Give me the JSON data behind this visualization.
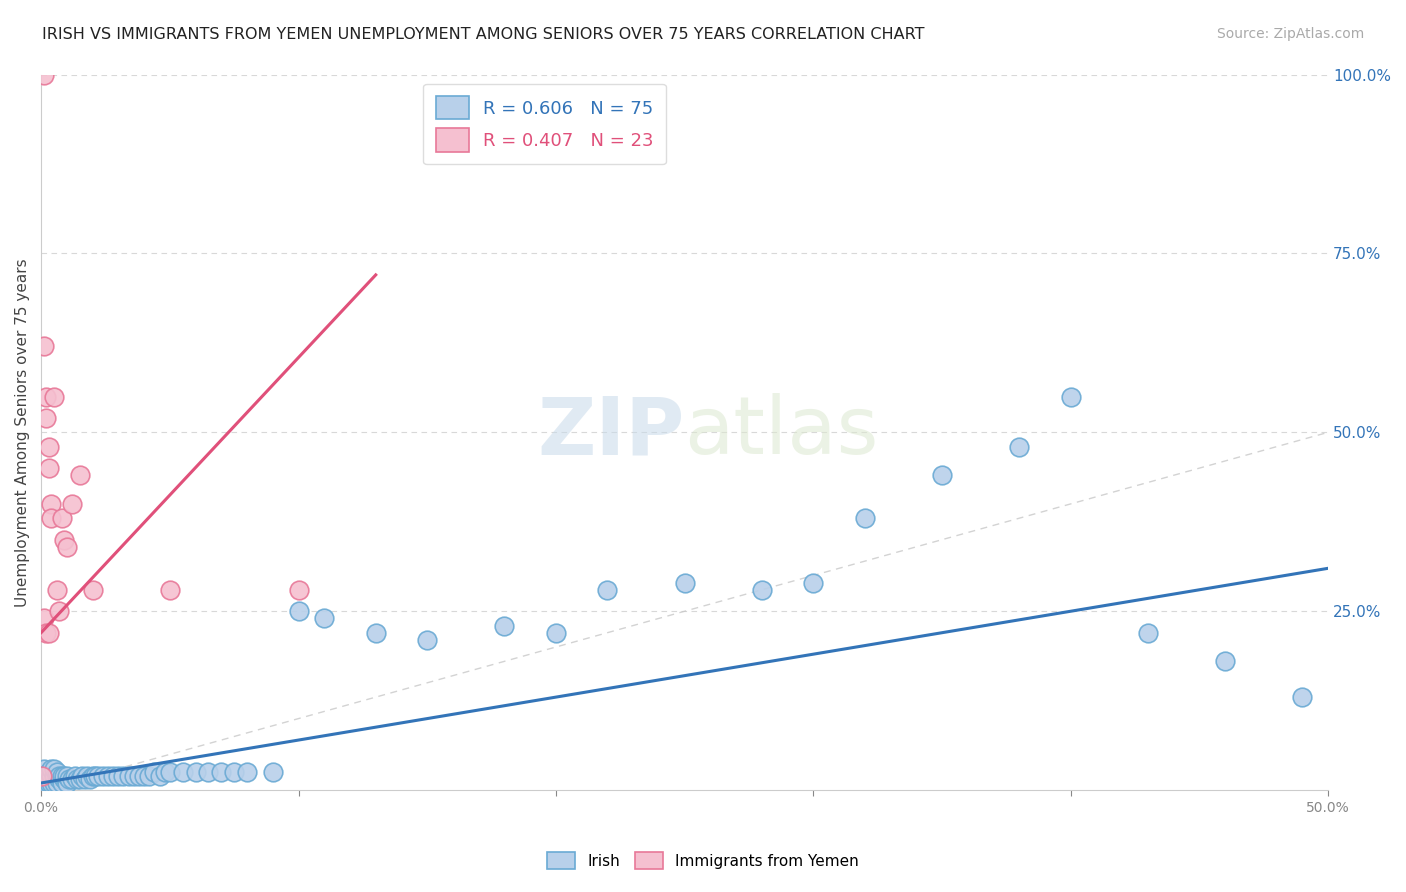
{
  "title": "IRISH VS IMMIGRANTS FROM YEMEN UNEMPLOYMENT AMONG SENIORS OVER 75 YEARS CORRELATION CHART",
  "source": "Source: ZipAtlas.com",
  "ylabel": "Unemployment Among Seniors over 75 years",
  "watermark": "ZIPatlas",
  "irish_color": "#b8d0ea",
  "irish_edge_color": "#6aaad4",
  "yemen_color": "#f5c0d0",
  "yemen_edge_color": "#e87898",
  "irish_line_color": "#3374b8",
  "yemen_line_color": "#e0507a",
  "diagonal_color": "#c8c8c8",
  "legend_irish_r": "R = 0.606",
  "legend_irish_n": "N = 75",
  "legend_yemen_r": "R = 0.407",
  "legend_yemen_n": "N = 23",
  "irish_x": [
    0.001,
    0.001,
    0.001,
    0.002,
    0.002,
    0.003,
    0.003,
    0.003,
    0.004,
    0.004,
    0.004,
    0.005,
    0.005,
    0.005,
    0.006,
    0.006,
    0.006,
    0.007,
    0.007,
    0.008,
    0.008,
    0.009,
    0.009,
    0.01,
    0.01,
    0.011,
    0.012,
    0.013,
    0.014,
    0.015,
    0.016,
    0.017,
    0.018,
    0.019,
    0.02,
    0.021,
    0.022,
    0.024,
    0.026,
    0.028,
    0.03,
    0.032,
    0.034,
    0.036,
    0.038,
    0.04,
    0.042,
    0.044,
    0.046,
    0.048,
    0.05,
    0.055,
    0.06,
    0.065,
    0.07,
    0.075,
    0.08,
    0.09,
    0.1,
    0.11,
    0.13,
    0.15,
    0.18,
    0.2,
    0.22,
    0.25,
    0.28,
    0.3,
    0.32,
    0.35,
    0.38,
    0.4,
    0.43,
    0.46,
    0.49
  ],
  "irish_y": [
    0.01,
    0.02,
    0.03,
    0.01,
    0.02,
    0.01,
    0.015,
    0.025,
    0.01,
    0.02,
    0.03,
    0.01,
    0.02,
    0.03,
    0.01,
    0.02,
    0.025,
    0.015,
    0.02,
    0.01,
    0.02,
    0.015,
    0.02,
    0.01,
    0.02,
    0.015,
    0.015,
    0.02,
    0.015,
    0.015,
    0.02,
    0.015,
    0.02,
    0.015,
    0.02,
    0.02,
    0.02,
    0.02,
    0.02,
    0.02,
    0.02,
    0.02,
    0.02,
    0.02,
    0.02,
    0.02,
    0.02,
    0.025,
    0.02,
    0.025,
    0.025,
    0.025,
    0.025,
    0.025,
    0.025,
    0.025,
    0.025,
    0.025,
    0.25,
    0.24,
    0.22,
    0.21,
    0.23,
    0.22,
    0.28,
    0.29,
    0.28,
    0.29,
    0.38,
    0.44,
    0.48,
    0.55,
    0.22,
    0.18,
    0.13
  ],
  "yemen_x": [
    0.0005,
    0.001,
    0.001,
    0.001,
    0.002,
    0.002,
    0.002,
    0.003,
    0.003,
    0.003,
    0.004,
    0.004,
    0.005,
    0.006,
    0.007,
    0.008,
    0.009,
    0.01,
    0.012,
    0.015,
    0.02,
    0.05,
    0.1
  ],
  "yemen_y": [
    0.02,
    1.0,
    0.62,
    0.24,
    0.55,
    0.52,
    0.22,
    0.48,
    0.45,
    0.22,
    0.4,
    0.38,
    0.55,
    0.28,
    0.25,
    0.38,
    0.35,
    0.34,
    0.4,
    0.44,
    0.28,
    0.28,
    0.28
  ],
  "xlim": [
    0.0,
    0.5
  ],
  "ylim": [
    0.0,
    1.0
  ],
  "right_ytick_vals": [
    0.25,
    0.5,
    0.75,
    1.0
  ],
  "background_color": "#ffffff",
  "grid_color": "#d8d8d8"
}
